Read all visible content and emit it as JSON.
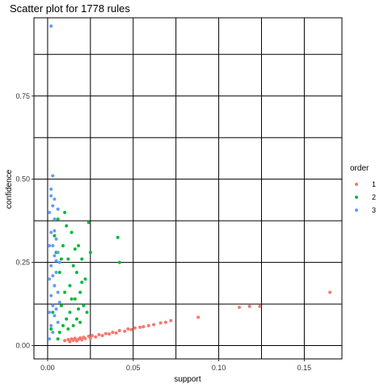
{
  "chart_data": {
    "type": "scatter",
    "title": "Scatter plot for 1778 rules",
    "xlabel": "support",
    "ylabel": "confidence",
    "xlim": [
      -0.008,
      0.172
    ],
    "ylim": [
      -0.04,
      0.985
    ],
    "x_ticks": [
      0.0,
      0.05,
      0.1,
      0.15
    ],
    "x_tick_labels": [
      "0.00",
      "0.05",
      "0.10",
      "0.15"
    ],
    "y_ticks": [
      0.0,
      0.25,
      0.5,
      0.75
    ],
    "y_tick_labels": [
      "0.00",
      "0.25",
      "0.50",
      "0.75"
    ],
    "grid": true,
    "legend": {
      "title": "order",
      "placement": "right"
    },
    "series": [
      {
        "name": "1",
        "color": "#F8766D",
        "points": [
          [
            0.01,
            0.015
          ],
          [
            0.012,
            0.018
          ],
          [
            0.013,
            0.012
          ],
          [
            0.014,
            0.02
          ],
          [
            0.015,
            0.016
          ],
          [
            0.016,
            0.022
          ],
          [
            0.017,
            0.014
          ],
          [
            0.018,
            0.019
          ],
          [
            0.019,
            0.023
          ],
          [
            0.02,
            0.017
          ],
          [
            0.021,
            0.025
          ],
          [
            0.022,
            0.021
          ],
          [
            0.024,
            0.028
          ],
          [
            0.025,
            0.022
          ],
          [
            0.026,
            0.03
          ],
          [
            0.028,
            0.026
          ],
          [
            0.03,
            0.033
          ],
          [
            0.032,
            0.03
          ],
          [
            0.034,
            0.036
          ],
          [
            0.036,
            0.035
          ],
          [
            0.038,
            0.04
          ],
          [
            0.04,
            0.038
          ],
          [
            0.042,
            0.045
          ],
          [
            0.045,
            0.043
          ],
          [
            0.047,
            0.05
          ],
          [
            0.049,
            0.048
          ],
          [
            0.051,
            0.053
          ],
          [
            0.054,
            0.055
          ],
          [
            0.056,
            0.057
          ],
          [
            0.059,
            0.06
          ],
          [
            0.062,
            0.063
          ],
          [
            0.066,
            0.068
          ],
          [
            0.069,
            0.07
          ],
          [
            0.072,
            0.075
          ],
          [
            0.088,
            0.085
          ],
          [
            0.112,
            0.115
          ],
          [
            0.118,
            0.118
          ],
          [
            0.124,
            0.118
          ],
          [
            0.165,
            0.16
          ]
        ]
      },
      {
        "name": "2",
        "color": "#00BA38",
        "points": [
          [
            0.002,
            0.05
          ],
          [
            0.003,
            0.1
          ],
          [
            0.004,
            0.18
          ],
          [
            0.005,
            0.28
          ],
          [
            0.006,
            0.38
          ],
          [
            0.004,
            0.33
          ],
          [
            0.007,
            0.22
          ],
          [
            0.008,
            0.12
          ],
          [
            0.009,
            0.3
          ],
          [
            0.01,
            0.4
          ],
          [
            0.011,
            0.36
          ],
          [
            0.012,
            0.26
          ],
          [
            0.013,
            0.18
          ],
          [
            0.014,
            0.34
          ],
          [
            0.015,
            0.24
          ],
          [
            0.016,
            0.14
          ],
          [
            0.017,
            0.22
          ],
          [
            0.018,
            0.3
          ],
          [
            0.019,
            0.16
          ],
          [
            0.02,
            0.26
          ],
          [
            0.021,
            0.12
          ],
          [
            0.022,
            0.2
          ],
          [
            0.023,
            0.1
          ],
          [
            0.024,
            0.37
          ],
          [
            0.025,
            0.28
          ],
          [
            0.013,
            0.1
          ],
          [
            0.011,
            0.08
          ],
          [
            0.009,
            0.06
          ],
          [
            0.007,
            0.04
          ],
          [
            0.006,
            0.02
          ],
          [
            0.015,
            0.06
          ],
          [
            0.017,
            0.08
          ],
          [
            0.019,
            0.07
          ],
          [
            0.012,
            0.05
          ],
          [
            0.01,
            0.16
          ],
          [
            0.008,
            0.26
          ],
          [
            0.014,
            0.14
          ],
          [
            0.016,
            0.29
          ],
          [
            0.018,
            0.11
          ],
          [
            0.02,
            0.19
          ],
          [
            0.041,
            0.325
          ],
          [
            0.042,
            0.25
          ]
        ]
      },
      {
        "name": "3",
        "color": "#619CFF",
        "points": [
          [
            0.001,
            0.4
          ],
          [
            0.002,
            0.45
          ],
          [
            0.003,
            0.42
          ],
          [
            0.002,
            0.47
          ],
          [
            0.003,
            0.51
          ],
          [
            0.004,
            0.38
          ],
          [
            0.002,
            0.34
          ],
          [
            0.003,
            0.3
          ],
          [
            0.004,
            0.27
          ],
          [
            0.002,
            0.24
          ],
          [
            0.003,
            0.21
          ],
          [
            0.004,
            0.18
          ],
          [
            0.002,
            0.15
          ],
          [
            0.003,
            0.12
          ],
          [
            0.004,
            0.09
          ],
          [
            0.002,
            0.06
          ],
          [
            0.003,
            0.04
          ],
          [
            0.001,
            0.02
          ],
          [
            0.005,
            0.32
          ],
          [
            0.006,
            0.28
          ],
          [
            0.005,
            0.22
          ],
          [
            0.006,
            0.16
          ],
          [
            0.005,
            0.11
          ],
          [
            0.006,
            0.07
          ],
          [
            0.007,
            0.13
          ],
          [
            0.007,
            0.25
          ],
          [
            0.004,
            0.44
          ],
          [
            0.006,
            0.41
          ],
          [
            0.001,
            0.3
          ],
          [
            0.001,
            0.2
          ],
          [
            0.001,
            0.1
          ],
          [
            0.004,
            0.345
          ],
          [
            0.005,
            0.255
          ],
          [
            0.002,
            0.96
          ]
        ]
      }
    ]
  }
}
